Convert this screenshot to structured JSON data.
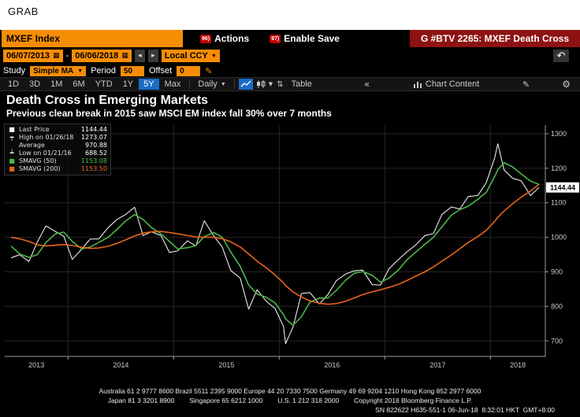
{
  "window": {
    "grab_label": "GRAB"
  },
  "icons": {
    "calendar": "▦",
    "dropdown": "▼",
    "prev": "◂",
    "next": "▸",
    "undo": "↶",
    "pencil": "✎",
    "gear": "⚙",
    "collapse": "«",
    "compare": "⇅"
  },
  "header": {
    "ticker": "MXEF Index",
    "actions_num": "96)",
    "actions_label": "Actions",
    "save_num": "97)",
    "save_label": "Enable Save",
    "banner": "G #BTV 2265: MXEF Death Cross"
  },
  "controls": {
    "date_from": "06/07/2013",
    "range_sep": "-",
    "date_to": "06/06/2018",
    "currency": "Local CCY",
    "study_label": "Study",
    "study_value": "Simple MA",
    "period_label": "Period",
    "period_value": "50",
    "offset_label": "Offset",
    "offset_value": "0"
  },
  "toolbar": {
    "ranges": [
      "1D",
      "3D",
      "1M",
      "6M",
      "YTD",
      "1Y",
      "5Y",
      "Max"
    ],
    "active_range": "5Y",
    "frequency": "Daily",
    "table_label": "Table",
    "chart_content_label": "Chart Content"
  },
  "titles": {
    "title": "Death Cross in Emerging Markets",
    "subtitle": "Previous clean break in 2015 saw MSCI EM index fall 30% over 7 months"
  },
  "legend": {
    "rows": [
      {
        "marker": "■",
        "label": "Last Price",
        "value": "1144.44"
      },
      {
        "marker": "┯",
        "label": "High on 01/26/18",
        "value": "1273.07"
      },
      {
        "marker": "",
        "label": "Average",
        "value": "970.88"
      },
      {
        "marker": "┷",
        "label": "Low on 01/21/16",
        "value": "688.52"
      },
      {
        "marker": "■",
        "label": "SMAVG (50)",
        "value": "1153.08"
      },
      {
        "marker": "■",
        "label": "SMAVG (200)",
        "value": "1153.50"
      }
    ]
  },
  "chart_data": {
    "type": "line",
    "title": "Death Cross in Emerging Markets",
    "xlabel": "",
    "ylabel": "",
    "xlim": [
      2013.4,
      2018.52
    ],
    "ylim": [
      655,
      1325
    ],
    "yticks": [
      700,
      800,
      900,
      1000,
      1100,
      1200,
      1300
    ],
    "xticks": [
      2013,
      2014,
      2015,
      2016,
      2017,
      2018
    ],
    "grid": true,
    "legend_position": "top-left",
    "last_price": 1144.44,
    "x": [
      2013.46,
      2013.54,
      2013.63,
      2013.71,
      2013.79,
      2013.88,
      2013.96,
      2014.04,
      2014.13,
      2014.21,
      2014.29,
      2014.38,
      2014.46,
      2014.54,
      2014.63,
      2014.71,
      2014.79,
      2014.88,
      2014.96,
      2015.04,
      2015.13,
      2015.21,
      2015.29,
      2015.38,
      2015.46,
      2015.54,
      2015.63,
      2015.71,
      2015.79,
      2015.88,
      2015.96,
      2016.04,
      2016.06,
      2016.13,
      2016.21,
      2016.29,
      2016.38,
      2016.46,
      2016.54,
      2016.63,
      2016.71,
      2016.79,
      2016.88,
      2016.96,
      2017.04,
      2017.13,
      2017.21,
      2017.29,
      2017.38,
      2017.46,
      2017.54,
      2017.63,
      2017.71,
      2017.79,
      2017.88,
      2017.96,
      2018.04,
      2018.07,
      2018.13,
      2018.21,
      2018.29,
      2018.38,
      2018.46
    ],
    "series": [
      {
        "name": "Last Price",
        "color": "#ffffff",
        "width": 1,
        "values": [
          940,
          950,
          930,
          987,
          1033,
          1017,
          1003,
          936,
          966,
          995,
          995,
          1028,
          1051,
          1065,
          1087,
          1005,
          1016,
          1005,
          956,
          961,
          990,
          975,
          1048,
          1004,
          972,
          904,
          882,
          792,
          848,
          814,
          794,
          742,
          692,
          740,
          837,
          840,
          807,
          834,
          874,
          894,
          903,
          905,
          863,
          862,
          909,
          936,
          958,
          977,
          1005,
          1011,
          1066,
          1088,
          1082,
          1118,
          1121,
          1158,
          1230,
          1271,
          1195,
          1171,
          1164,
          1121,
          1144.44
        ]
      },
      {
        "name": "SMAVG (50)",
        "color": "#4cb648",
        "width": 1.6,
        "values": [
          975,
          952,
          942,
          950,
          985,
          1010,
          1015,
          988,
          966,
          972,
          985,
          1000,
          1022,
          1046,
          1066,
          1052,
          1028,
          1010,
          988,
          966,
          970,
          976,
          1002,
          1014,
          1000,
          958,
          916,
          862,
          836,
          826,
          810,
          776,
          764,
          745,
          770,
          812,
          824,
          824,
          846,
          876,
          896,
          901,
          890,
          870,
          882,
          906,
          935,
          956,
          980,
          1000,
          1030,
          1064,
          1080,
          1090,
          1110,
          1130,
          1176,
          1196,
          1216,
          1204,
          1184,
          1163,
          1153.08
        ]
      },
      {
        "name": "SMAVG (200)",
        "color": "#e8641b",
        "width": 1.6,
        "values": [
          1000,
          996,
          988,
          978,
          975,
          977,
          979,
          976,
          971,
          968,
          969,
          974,
          982,
          992,
          1004,
          1012,
          1016,
          1017,
          1014,
          1010,
          1005,
          1001,
          1000,
          1000,
          996,
          987,
          972,
          952,
          931,
          911,
          891,
          868,
          860,
          842,
          827,
          816,
          809,
          806,
          808,
          815,
          824,
          834,
          842,
          848,
          855,
          864,
          875,
          887,
          900,
          914,
          931,
          949,
          967,
          985,
          1002,
          1020,
          1046,
          1058,
          1076,
          1097,
          1116,
          1134,
          1153.5
        ]
      }
    ]
  },
  "price_tag": "1144.44",
  "footer": {
    "line1": "Australia 61 2 9777 8600 Brazil 5511 2395 9000 Europe 44 20 7330 7500 Germany 49 69 9204 1210 Hong Kong 852 2977 6000",
    "line2": "Japan 81 3 3201 8900        Singapore 65 6212 1000        U.S. 1 212 318 2000        Copyright 2018 Bloomberg Finance L.P.",
    "line3": "SN 822622 H635-551-1 06-Jun-18  8:32:01 HKT  GMT+8:00"
  }
}
